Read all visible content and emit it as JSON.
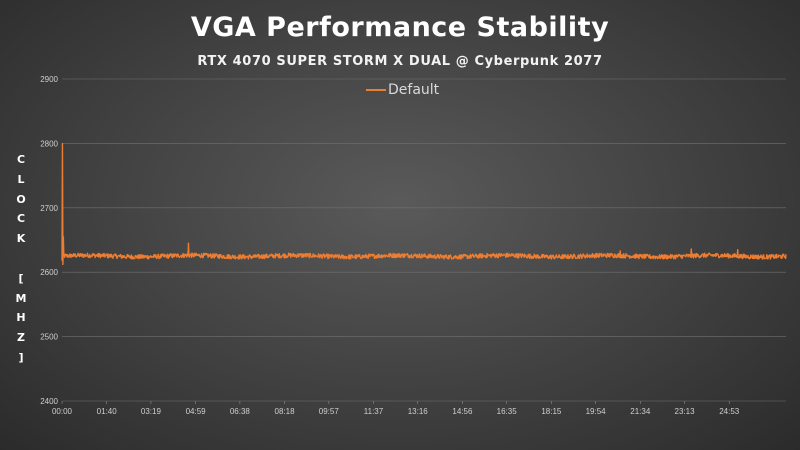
{
  "chart_data": {
    "type": "line",
    "title": "VGA Performance Stability",
    "subtitle": "RTX 4070 SUPER STORM X DUAL @ Cyberpunk 2077",
    "ylabel": "CLOCK [MHZ]",
    "ylabel_chars": [
      "C",
      "L",
      "O",
      "C",
      "K",
      "",
      "[",
      "M",
      "H",
      "Z",
      "]"
    ],
    "ylim": [
      2400,
      2900
    ],
    "yticks": [
      "2400",
      "2500",
      "2600",
      "2700",
      "2800",
      "2900"
    ],
    "xticks": [
      "00:00",
      "01:40",
      "03:19",
      "04:59",
      "06:38",
      "08:18",
      "09:57",
      "11:37",
      "13:16",
      "14:56",
      "16:35",
      "18:15",
      "19:54",
      "21:34",
      "23:13",
      "24:53"
    ],
    "xlim_seconds": [
      0,
      1620
    ],
    "legend_position": "top-center",
    "grid": "horizontal",
    "series": [
      {
        "name": "Default",
        "color": "#ed7d31",
        "baseline": 2625,
        "spikes": [
          {
            "time": "00:00",
            "value": 2800
          },
          {
            "time": "00:00",
            "value": 2655
          },
          {
            "time": "04:43",
            "value": 2645
          },
          {
            "time": "20:49",
            "value": 2633
          },
          {
            "time": "23:28",
            "value": 2636
          },
          {
            "time": "25:12",
            "value": 2635
          }
        ]
      }
    ]
  }
}
